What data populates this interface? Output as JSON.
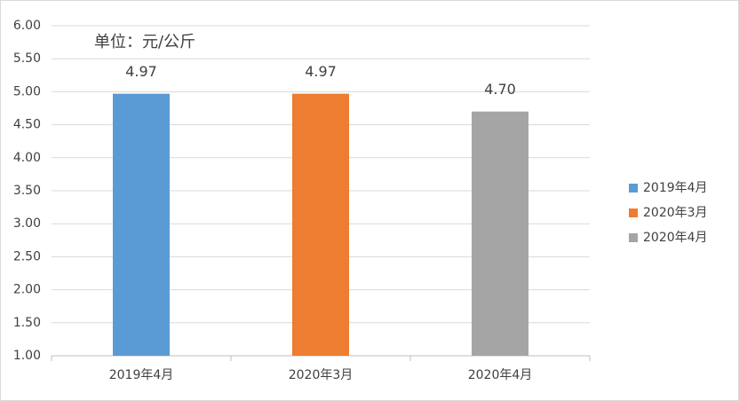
{
  "chart_data": {
    "type": "bar",
    "annotation": "单位：元/公斤",
    "categories": [
      "2019年4月",
      "2020年3月",
      "2020年4月"
    ],
    "values": [
      4.97,
      4.97,
      4.7
    ],
    "value_labels": [
      "4.97",
      "4.97",
      "4.70"
    ],
    "colors": [
      "#5b9bd5",
      "#ed7d31",
      "#a5a5a5"
    ],
    "ylim": [
      1,
      6
    ],
    "yticks": [
      {
        "value": 1,
        "label": "1.00"
      },
      {
        "value": 1.5,
        "label": "1.50"
      },
      {
        "value": 2,
        "label": "2.00"
      },
      {
        "value": 2.5,
        "label": "2.50"
      },
      {
        "value": 3,
        "label": "3.00"
      },
      {
        "value": 3.5,
        "label": "3.50"
      },
      {
        "value": 4,
        "label": "4.00"
      },
      {
        "value": 4.5,
        "label": "4.50"
      },
      {
        "value": 5,
        "label": "5.00"
      },
      {
        "value": 5.5,
        "label": "5.50"
      },
      {
        "value": 6,
        "label": "6.00"
      }
    ],
    "grid": true,
    "legend": "right"
  }
}
